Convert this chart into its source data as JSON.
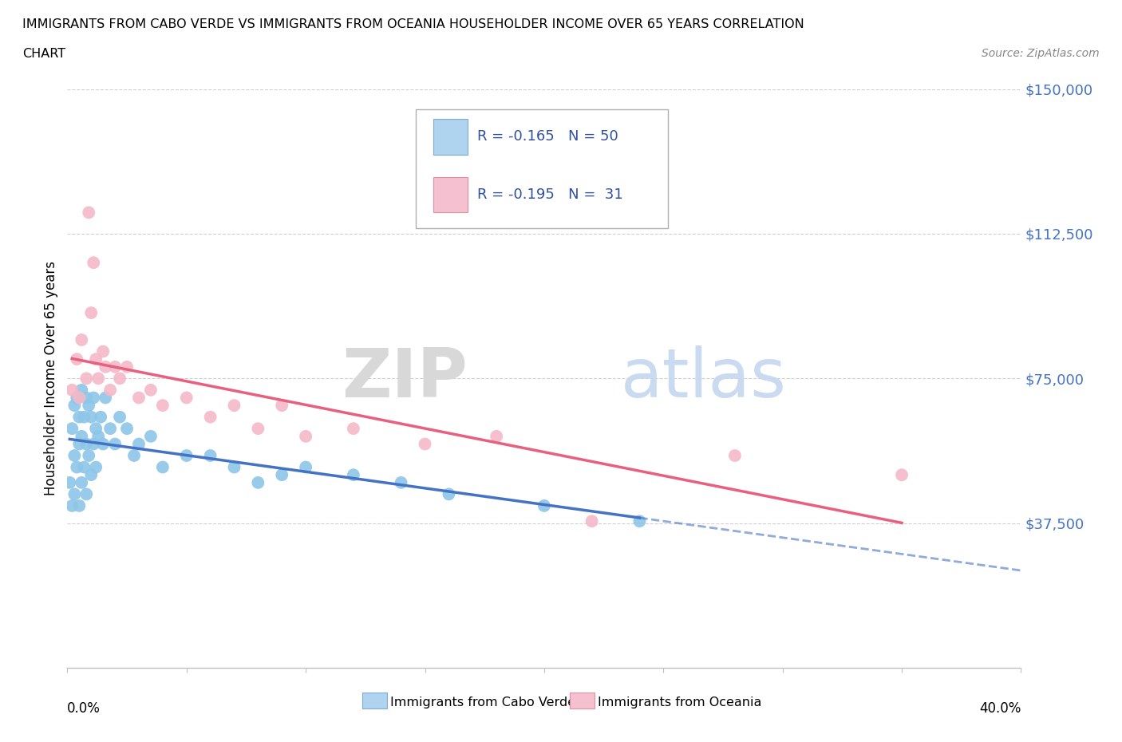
{
  "title_line1": "IMMIGRANTS FROM CABO VERDE VS IMMIGRANTS FROM OCEANIA HOUSEHOLDER INCOME OVER 65 YEARS CORRELATION",
  "title_line2": "CHART",
  "source": "Source: ZipAtlas.com",
  "ylabel": "Householder Income Over 65 years",
  "ytick_labels": [
    "$37,500",
    "$75,000",
    "$112,500",
    "$150,000"
  ],
  "ytick_values": [
    37500,
    75000,
    112500,
    150000
  ],
  "xlim": [
    0.0,
    0.4
  ],
  "ylim": [
    0,
    150000
  ],
  "watermark_zip": "ZIP",
  "watermark_atlas": "atlas",
  "legend_text1": "R = -0.165   N = 50",
  "legend_text2": "R = -0.195   N =  31",
  "cabo_verde_color": "#8dc6e8",
  "oceania_color": "#f5b8c8",
  "cabo_verde_line_color": "#4472c4",
  "oceania_line_color": "#e86080",
  "cabo_verde_legend_color": "#aed4f0",
  "oceania_legend_color": "#f5c0d0",
  "cabo_verde_x": [
    0.001,
    0.002,
    0.002,
    0.003,
    0.003,
    0.003,
    0.004,
    0.004,
    0.005,
    0.005,
    0.005,
    0.006,
    0.006,
    0.006,
    0.007,
    0.007,
    0.008,
    0.008,
    0.008,
    0.009,
    0.009,
    0.01,
    0.01,
    0.011,
    0.011,
    0.012,
    0.012,
    0.013,
    0.014,
    0.015,
    0.016,
    0.018,
    0.02,
    0.022,
    0.025,
    0.028,
    0.03,
    0.035,
    0.04,
    0.05,
    0.06,
    0.07,
    0.08,
    0.09,
    0.1,
    0.12,
    0.14,
    0.16,
    0.2,
    0.24
  ],
  "cabo_verde_y": [
    48000,
    62000,
    42000,
    68000,
    55000,
    45000,
    70000,
    52000,
    65000,
    58000,
    42000,
    72000,
    60000,
    48000,
    65000,
    52000,
    70000,
    58000,
    45000,
    68000,
    55000,
    65000,
    50000,
    70000,
    58000,
    62000,
    52000,
    60000,
    65000,
    58000,
    70000,
    62000,
    58000,
    65000,
    62000,
    55000,
    58000,
    60000,
    52000,
    55000,
    55000,
    52000,
    48000,
    50000,
    52000,
    50000,
    48000,
    45000,
    42000,
    38000
  ],
  "oceania_x": [
    0.002,
    0.004,
    0.005,
    0.006,
    0.008,
    0.009,
    0.01,
    0.011,
    0.012,
    0.013,
    0.015,
    0.016,
    0.018,
    0.02,
    0.022,
    0.025,
    0.03,
    0.035,
    0.04,
    0.05,
    0.06,
    0.07,
    0.08,
    0.09,
    0.1,
    0.12,
    0.15,
    0.18,
    0.22,
    0.28,
    0.35
  ],
  "oceania_y": [
    72000,
    80000,
    70000,
    85000,
    75000,
    118000,
    92000,
    105000,
    80000,
    75000,
    82000,
    78000,
    72000,
    78000,
    75000,
    78000,
    70000,
    72000,
    68000,
    70000,
    65000,
    68000,
    62000,
    68000,
    60000,
    62000,
    58000,
    60000,
    38000,
    55000,
    50000
  ]
}
